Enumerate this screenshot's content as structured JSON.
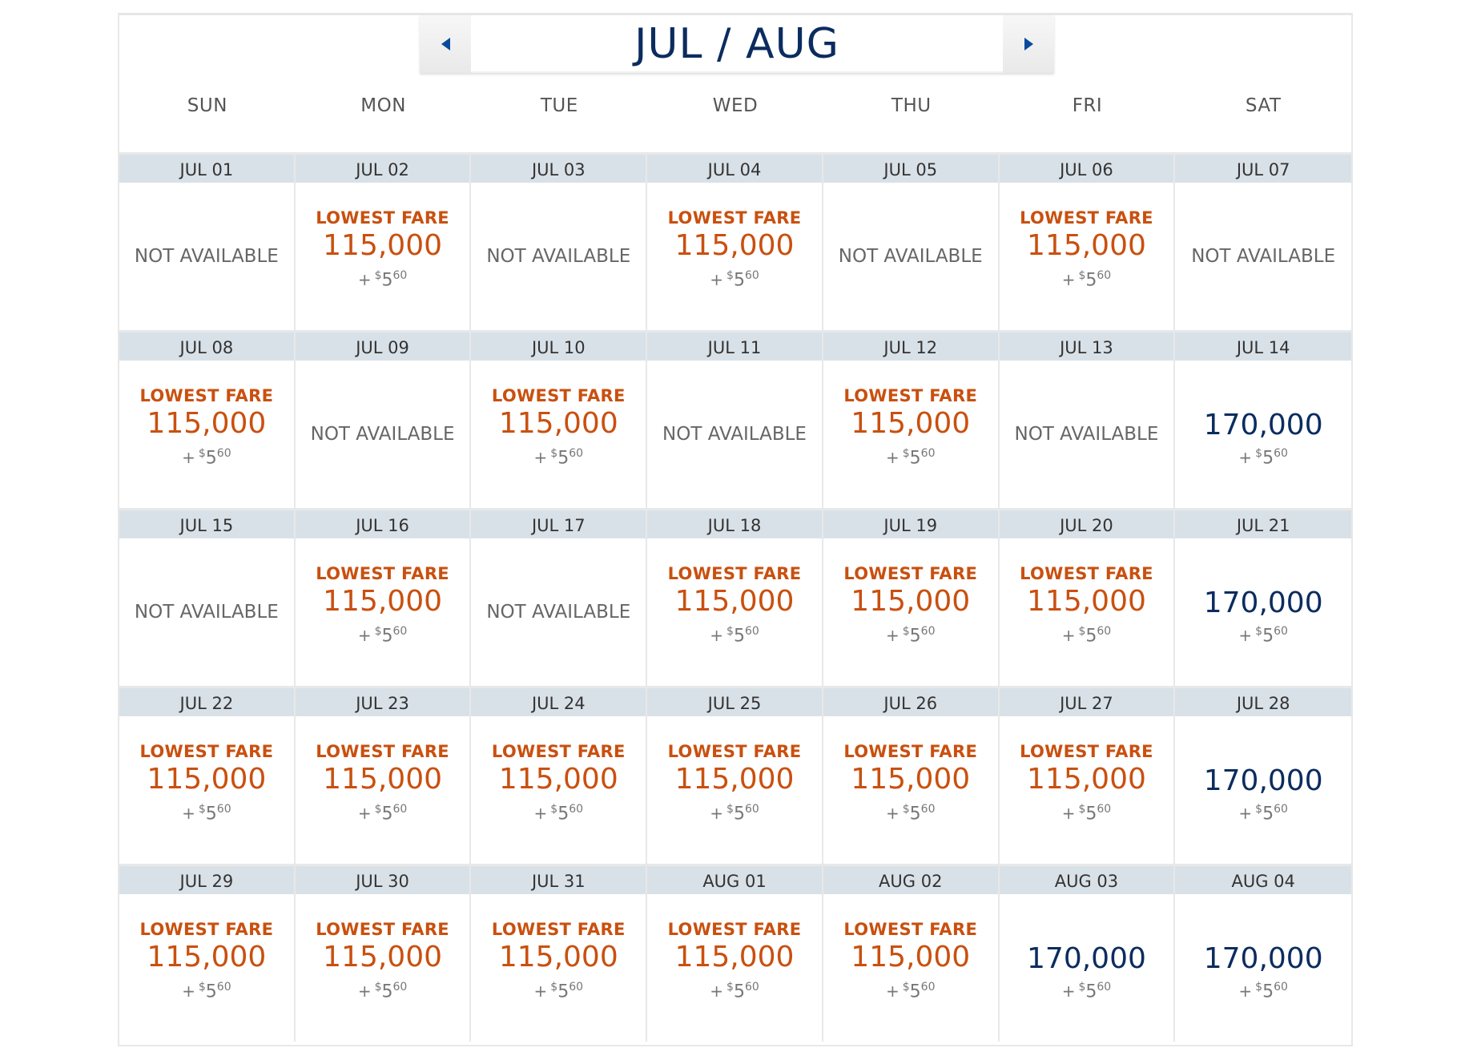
{
  "header": {
    "title": "JUL / AUG",
    "prev_label": "previous",
    "next_label": "next"
  },
  "days_of_week": [
    "SUN",
    "MON",
    "TUE",
    "WED",
    "THU",
    "FRI",
    "SAT"
  ],
  "labels": {
    "lowest": "LOWEST FARE",
    "na": "NOT AVAILABLE",
    "plus": "+",
    "currency": "$",
    "tax_whole": "5",
    "tax_cents": "60"
  },
  "colors": {
    "lowest": "#c9500f",
    "regular": "#0b2c5f",
    "header_bg": "#d9e1e8"
  },
  "weeks": [
    [
      {
        "date": "JUL 01",
        "status": "na"
      },
      {
        "date": "JUL 02",
        "status": "lowest",
        "miles": "115,000"
      },
      {
        "date": "JUL 03",
        "status": "na"
      },
      {
        "date": "JUL 04",
        "status": "lowest",
        "miles": "115,000"
      },
      {
        "date": "JUL 05",
        "status": "na"
      },
      {
        "date": "JUL 06",
        "status": "lowest",
        "miles": "115,000"
      },
      {
        "date": "JUL 07",
        "status": "na"
      }
    ],
    [
      {
        "date": "JUL 08",
        "status": "lowest",
        "miles": "115,000"
      },
      {
        "date": "JUL 09",
        "status": "na"
      },
      {
        "date": "JUL 10",
        "status": "lowest",
        "miles": "115,000"
      },
      {
        "date": "JUL 11",
        "status": "na"
      },
      {
        "date": "JUL 12",
        "status": "lowest",
        "miles": "115,000"
      },
      {
        "date": "JUL 13",
        "status": "na"
      },
      {
        "date": "JUL 14",
        "status": "regular",
        "miles": "170,000"
      }
    ],
    [
      {
        "date": "JUL 15",
        "status": "na"
      },
      {
        "date": "JUL 16",
        "status": "lowest",
        "miles": "115,000"
      },
      {
        "date": "JUL 17",
        "status": "na"
      },
      {
        "date": "JUL 18",
        "status": "lowest",
        "miles": "115,000"
      },
      {
        "date": "JUL 19",
        "status": "lowest",
        "miles": "115,000"
      },
      {
        "date": "JUL 20",
        "status": "lowest",
        "miles": "115,000"
      },
      {
        "date": "JUL 21",
        "status": "regular",
        "miles": "170,000"
      }
    ],
    [
      {
        "date": "JUL 22",
        "status": "lowest",
        "miles": "115,000"
      },
      {
        "date": "JUL 23",
        "status": "lowest",
        "miles": "115,000"
      },
      {
        "date": "JUL 24",
        "status": "lowest",
        "miles": "115,000"
      },
      {
        "date": "JUL 25",
        "status": "lowest",
        "miles": "115,000"
      },
      {
        "date": "JUL 26",
        "status": "lowest",
        "miles": "115,000"
      },
      {
        "date": "JUL 27",
        "status": "lowest",
        "miles": "115,000"
      },
      {
        "date": "JUL 28",
        "status": "regular",
        "miles": "170,000"
      }
    ],
    [
      {
        "date": "JUL 29",
        "status": "lowest",
        "miles": "115,000"
      },
      {
        "date": "JUL 30",
        "status": "lowest",
        "miles": "115,000"
      },
      {
        "date": "JUL 31",
        "status": "lowest",
        "miles": "115,000"
      },
      {
        "date": "AUG 01",
        "status": "lowest",
        "miles": "115,000"
      },
      {
        "date": "AUG 02",
        "status": "lowest",
        "miles": "115,000"
      },
      {
        "date": "AUG 03",
        "status": "regular",
        "miles": "170,000"
      },
      {
        "date": "AUG 04",
        "status": "regular",
        "miles": "170,000"
      }
    ]
  ]
}
